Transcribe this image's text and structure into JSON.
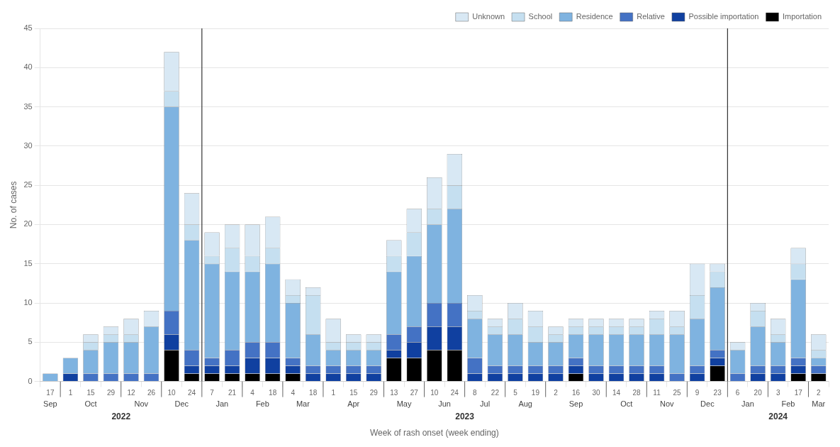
{
  "chart_data": {
    "type": "bar",
    "stacked": true,
    "xlabel": "Week of rash onset (week ending)",
    "ylabel": "No. of cases",
    "categories": [
      "17",
      "1",
      "15",
      "29",
      "12",
      "26",
      "10",
      "24",
      "7",
      "21",
      "4",
      "18",
      "4",
      "18",
      "1",
      "15",
      "29",
      "13",
      "27",
      "10",
      "24",
      "8",
      "22",
      "5",
      "19",
      "2",
      "16",
      "30",
      "14",
      "28",
      "11",
      "25",
      "9",
      "23",
      "6",
      "20",
      "3",
      "17",
      "2"
    ],
    "series": [
      {
        "name": "Importation",
        "color": "#000000",
        "values": [
          0,
          0,
          0,
          0,
          0,
          0,
          4,
          1,
          1,
          1,
          1,
          1,
          1,
          0,
          0,
          0,
          0,
          3,
          3,
          4,
          4,
          0,
          0,
          0,
          0,
          0,
          1,
          0,
          0,
          0,
          0,
          0,
          0,
          2,
          0,
          0,
          0,
          1,
          1
        ]
      },
      {
        "name": "Possible importation",
        "color": "#1040a0",
        "values": [
          0,
          1,
          0,
          0,
          0,
          0,
          2,
          1,
          1,
          1,
          2,
          2,
          1,
          1,
          1,
          1,
          1,
          1,
          2,
          3,
          3,
          1,
          1,
          1,
          1,
          1,
          1,
          1,
          1,
          1,
          1,
          0,
          1,
          1,
          0,
          1,
          1,
          1,
          0
        ]
      },
      {
        "name": "Relative",
        "color": "#4472c4",
        "values": [
          0,
          0,
          1,
          1,
          1,
          1,
          3,
          2,
          1,
          2,
          2,
          2,
          1,
          1,
          1,
          1,
          1,
          2,
          2,
          3,
          3,
          2,
          1,
          1,
          1,
          1,
          1,
          1,
          1,
          1,
          1,
          1,
          1,
          1,
          1,
          1,
          1,
          1,
          1
        ]
      },
      {
        "name": "Residence",
        "color": "#7fb3e0",
        "values": [
          1,
          2,
          3,
          4,
          4,
          6,
          26,
          14,
          12,
          10,
          9,
          10,
          7,
          4,
          2,
          2,
          2,
          8,
          9,
          10,
          12,
          5,
          4,
          4,
          3,
          3,
          3,
          4,
          4,
          4,
          4,
          5,
          6,
          8,
          3,
          5,
          3,
          10,
          1
        ]
      },
      {
        "name": "School",
        "color": "#c5dff0",
        "values": [
          0,
          0,
          1,
          1,
          1,
          0,
          2,
          2,
          1,
          3,
          2,
          2,
          1,
          5,
          1,
          1,
          1,
          2,
          3,
          2,
          3,
          1,
          1,
          2,
          2,
          1,
          1,
          1,
          1,
          1,
          2,
          1,
          3,
          2,
          0,
          2,
          1,
          2,
          1
        ]
      },
      {
        "name": "Unknown",
        "color": "#d8e8f4",
        "values": [
          0,
          0,
          1,
          1,
          2,
          2,
          5,
          4,
          3,
          3,
          4,
          4,
          2,
          1,
          3,
          1,
          1,
          2,
          3,
          4,
          4,
          2,
          1,
          2,
          2,
          1,
          1,
          1,
          1,
          1,
          1,
          2,
          4,
          1,
          1,
          1,
          2,
          2,
          2
        ]
      }
    ],
    "ylim": [
      0,
      45
    ],
    "yticks": [
      0,
      5,
      10,
      15,
      20,
      25,
      30,
      35,
      40,
      45
    ],
    "grid": true,
    "legend": "upper right",
    "month_labels": [
      {
        "label": "Sep",
        "first": 0,
        "last": 0
      },
      {
        "label": "Oct",
        "first": 1,
        "last": 3
      },
      {
        "label": "Nov",
        "first": 4,
        "last": 5
      },
      {
        "label": "Dec",
        "first": 6,
        "last": 7
      },
      {
        "label": "Jan",
        "first": 8,
        "last": 9
      },
      {
        "label": "Feb",
        "first": 10,
        "last": 11
      },
      {
        "label": "Mar",
        "first": 12,
        "last": 13
      },
      {
        "label": "Apr",
        "first": 14,
        "last": 16
      },
      {
        "label": "May",
        "first": 17,
        "last": 18
      },
      {
        "label": "Jun",
        "first": 19,
        "last": 20
      },
      {
        "label": "Jul",
        "first": 21,
        "last": 22
      },
      {
        "label": "Aug",
        "first": 23,
        "last": 24
      },
      {
        "label": "Sep",
        "first": 25,
        "last": 27
      },
      {
        "label": "Oct",
        "first": 28,
        "last": 29
      },
      {
        "label": "Nov",
        "first": 30,
        "last": 31
      },
      {
        "label": "Dec",
        "first": 32,
        "last": 33
      },
      {
        "label": "Jan",
        "first": 34,
        "last": 35
      },
      {
        "label": "Feb",
        "first": 36,
        "last": 37
      },
      {
        "label": "Mar",
        "first": 38,
        "last": 38
      }
    ],
    "year_labels": [
      {
        "label": "2022",
        "first": 0,
        "last": 7
      },
      {
        "label": "2023",
        "first": 8,
        "last": 33
      },
      {
        "label": "2024",
        "first": 34,
        "last": 38
      }
    ]
  }
}
